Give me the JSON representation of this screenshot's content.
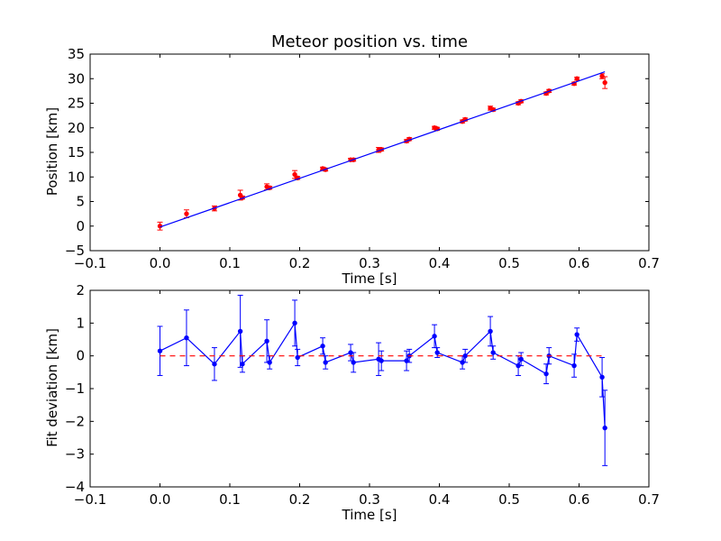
{
  "colors": {
    "background": "#ffffff",
    "axes": "#000000",
    "data_points": "#ff0000",
    "fit_line": "#0000ff",
    "deviation_series": "#0000ff",
    "zero_line": "#ff0000"
  },
  "chart_data": [
    {
      "type": "scatter",
      "title": "Meteor position vs. time",
      "xlabel": "Time [s]",
      "ylabel": "Position [km]",
      "xlim": [
        -0.1,
        0.7
      ],
      "ylim": [
        -5,
        35
      ],
      "xticks": [
        "−0.1",
        "0.0",
        "0.1",
        "0.2",
        "0.3",
        "0.4",
        "0.5",
        "0.6",
        "0.7"
      ],
      "yticks": [
        "−5",
        "0",
        "5",
        "10",
        "15",
        "20",
        "25",
        "30",
        "35"
      ],
      "grid": false,
      "legend": "none",
      "series": [
        {
          "kind": "points-with-error-bars",
          "color": "red",
          "x": [
            0.0,
            0.038,
            0.078,
            0.115,
            0.118,
            0.153,
            0.157,
            0.193,
            0.197,
            0.233,
            0.237,
            0.273,
            0.277,
            0.313,
            0.317,
            0.353,
            0.357,
            0.393,
            0.397,
            0.433,
            0.437,
            0.473,
            0.477,
            0.513,
            0.517,
            0.553,
            0.557,
            0.593,
            0.597,
            0.633,
            0.637
          ],
          "y": [
            0.0,
            2.5,
            3.6,
            6.3,
            5.8,
            8.0,
            7.8,
            10.5,
            9.8,
            11.7,
            11.5,
            13.5,
            13.5,
            15.5,
            15.6,
            17.3,
            17.7,
            20.0,
            19.8,
            21.3,
            21.7,
            24.0,
            23.7,
            25.0,
            25.4,
            27.0,
            27.5,
            29.0,
            30.0,
            30.5,
            29.2
          ],
          "yerr": [
            0.8,
            0.8,
            0.5,
            1.0,
            0.3,
            0.6,
            0.3,
            0.8,
            0.3,
            0.3,
            0.3,
            0.3,
            0.3,
            0.5,
            0.3,
            0.3,
            0.3,
            0.3,
            0.3,
            0.3,
            0.3,
            0.4,
            0.3,
            0.3,
            0.3,
            0.3,
            0.3,
            0.3,
            0.3,
            0.5,
            1.2
          ]
        },
        {
          "kind": "fit-line",
          "color": "blue",
          "x": [
            0.0,
            0.637
          ],
          "y": [
            -0.2,
            31.4
          ]
        }
      ]
    },
    {
      "type": "line",
      "title": "",
      "xlabel": "Time [s]",
      "ylabel": "Fit deviation [km]",
      "xlim": [
        -0.1,
        0.7
      ],
      "ylim": [
        -4,
        2
      ],
      "xticks": [
        "−0.1",
        "0.0",
        "0.1",
        "0.2",
        "0.3",
        "0.4",
        "0.5",
        "0.6",
        "0.7"
      ],
      "yticks": [
        "−4",
        "−3",
        "−2",
        "−1",
        "0",
        "1",
        "2"
      ],
      "grid": false,
      "legend": "none",
      "series": [
        {
          "kind": "line-with-error-bars",
          "color": "blue",
          "x": [
            0.0,
            0.038,
            0.078,
            0.115,
            0.118,
            0.153,
            0.157,
            0.193,
            0.197,
            0.233,
            0.237,
            0.273,
            0.277,
            0.313,
            0.317,
            0.353,
            0.357,
            0.393,
            0.397,
            0.433,
            0.437,
            0.473,
            0.477,
            0.513,
            0.517,
            0.553,
            0.557,
            0.593,
            0.597,
            0.633,
            0.637
          ],
          "y": [
            0.15,
            0.55,
            -0.25,
            0.75,
            -0.25,
            0.45,
            -0.2,
            1.0,
            -0.05,
            0.3,
            -0.2,
            0.1,
            -0.2,
            -0.1,
            -0.15,
            -0.15,
            0.0,
            0.6,
            0.1,
            -0.2,
            0.0,
            0.75,
            0.1,
            -0.3,
            -0.1,
            -0.55,
            0.0,
            -0.3,
            0.65,
            -0.65,
            -2.2
          ],
          "yerr": [
            0.75,
            0.85,
            0.5,
            1.1,
            0.25,
            0.65,
            0.2,
            0.7,
            0.25,
            0.25,
            0.2,
            0.25,
            0.3,
            0.5,
            0.3,
            0.3,
            0.2,
            0.35,
            0.15,
            0.2,
            0.2,
            0.45,
            0.2,
            0.3,
            0.2,
            0.3,
            0.25,
            0.35,
            0.2,
            0.6,
            1.15
          ]
        },
        {
          "kind": "zero-line",
          "color": "red",
          "style": "dashed",
          "x": [
            0.0,
            0.637
          ],
          "y": [
            0,
            0
          ]
        }
      ]
    }
  ]
}
